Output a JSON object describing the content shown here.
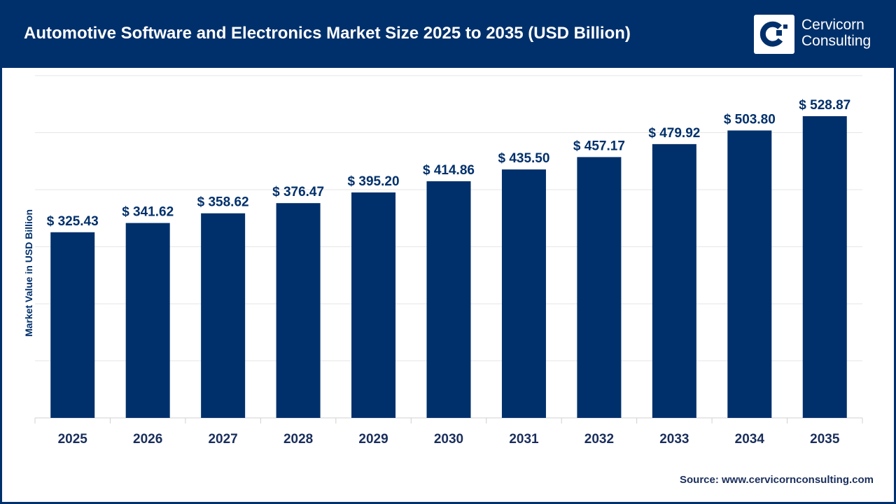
{
  "header": {
    "title": "Automotive Software and Electronics Market Size 2025 to 2035 (USD Billion)",
    "logo_text_line1": "Cervicorn",
    "logo_text_line2": "Consulting"
  },
  "source": "Source: www.cervicornconsulting.com",
  "colors": {
    "bar": "#00306b",
    "header": "#00306b",
    "grid": "#e6e6e6"
  },
  "chart_data": {
    "type": "bar",
    "title": "Automotive Software and Electronics Market Size 2025 to 2035 (USD Billion)",
    "xlabel": "",
    "ylabel": "Market Value in USD Billion",
    "categories": [
      "2025",
      "2026",
      "2027",
      "2028",
      "2029",
      "2030",
      "2031",
      "2032",
      "2033",
      "2034",
      "2035"
    ],
    "values": [
      325.43,
      341.62,
      358.62,
      376.47,
      395.2,
      414.86,
      435.5,
      457.17,
      479.92,
      503.8,
      528.87
    ],
    "data_labels": [
      "$ 325.43",
      "$ 341.62",
      "$ 358.62",
      "$ 376.47",
      "$ 395.20",
      "$ 414.86",
      "$ 435.50",
      "$ 457.17",
      "$ 479.92",
      "$ 503.80",
      "$ 528.87"
    ],
    "ylim": [
      0,
      600
    ],
    "grid_step": 100,
    "grid": true,
    "y_tick_labels_shown": false,
    "legend": "none"
  }
}
